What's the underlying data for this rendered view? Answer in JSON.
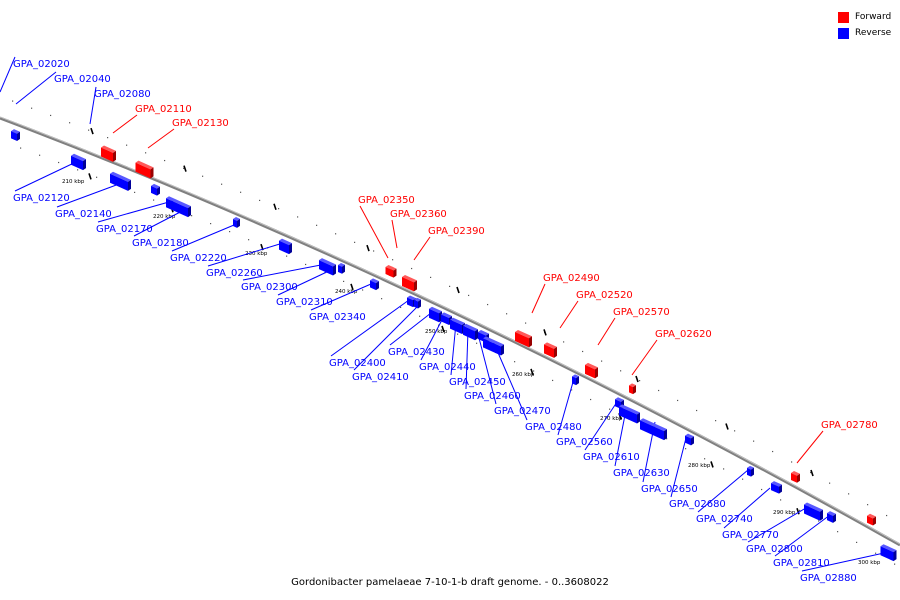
{
  "caption": "Gordonibacter pamelaeae 7-10-1-b draft genome. - 0..3608022",
  "legend": [
    {
      "label": "Forward",
      "color": "#ff0000"
    },
    {
      "label": "Reverse",
      "color": "#0000ff"
    }
  ],
  "colors": {
    "forward": "#ff0000",
    "reverse": "#0000ff",
    "backbone": "#808080"
  },
  "tick_labels": [
    "210 kbp",
    "220 kbp",
    "230 kbp",
    "240 kbp",
    "250 kbp",
    "260 kbp",
    "270 kbp",
    "280 kbp",
    "290 kbp",
    "300 kbp"
  ],
  "genes": [
    {
      "name": "GPA_02020",
      "strand": "reverse"
    },
    {
      "name": "GPA_02040",
      "strand": "reverse"
    },
    {
      "name": "GPA_02080",
      "strand": "reverse"
    },
    {
      "name": "GPA_02110",
      "strand": "forward"
    },
    {
      "name": "GPA_02130",
      "strand": "forward"
    },
    {
      "name": "GPA_02120",
      "strand": "reverse"
    },
    {
      "name": "GPA_02140",
      "strand": "reverse"
    },
    {
      "name": "GPA_02170",
      "strand": "reverse"
    },
    {
      "name": "GPA_02180",
      "strand": "reverse"
    },
    {
      "name": "GPA_02220",
      "strand": "reverse"
    },
    {
      "name": "GPA_02260",
      "strand": "reverse"
    },
    {
      "name": "GPA_02300",
      "strand": "reverse"
    },
    {
      "name": "GPA_02310",
      "strand": "reverse"
    },
    {
      "name": "GPA_02340",
      "strand": "reverse"
    },
    {
      "name": "GPA_02350",
      "strand": "forward"
    },
    {
      "name": "GPA_02360",
      "strand": "forward"
    },
    {
      "name": "GPA_02390",
      "strand": "forward"
    },
    {
      "name": "GPA_02400",
      "strand": "reverse"
    },
    {
      "name": "GPA_02410",
      "strand": "reverse"
    },
    {
      "name": "GPA_02430",
      "strand": "reverse"
    },
    {
      "name": "GPA_02440",
      "strand": "reverse"
    },
    {
      "name": "GPA_02450",
      "strand": "reverse"
    },
    {
      "name": "GPA_02460",
      "strand": "reverse"
    },
    {
      "name": "GPA_02470",
      "strand": "reverse"
    },
    {
      "name": "GPA_02480",
      "strand": "reverse"
    },
    {
      "name": "GPA_02490",
      "strand": "forward"
    },
    {
      "name": "GPA_02520",
      "strand": "forward"
    },
    {
      "name": "GPA_02570",
      "strand": "forward"
    },
    {
      "name": "GPA_02620",
      "strand": "forward"
    },
    {
      "name": "GPA_02560",
      "strand": "reverse"
    },
    {
      "name": "GPA_02610",
      "strand": "reverse"
    },
    {
      "name": "GPA_02630",
      "strand": "reverse"
    },
    {
      "name": "GPA_02650",
      "strand": "reverse"
    },
    {
      "name": "GPA_02680",
      "strand": "reverse"
    },
    {
      "name": "GPA_02740",
      "strand": "reverse"
    },
    {
      "name": "GPA_02770",
      "strand": "reverse"
    },
    {
      "name": "GPA_02780",
      "strand": "forward"
    },
    {
      "name": "GPA_02800",
      "strand": "reverse"
    },
    {
      "name": "GPA_02810",
      "strand": "reverse"
    },
    {
      "name": "GPA_02880",
      "strand": "reverse"
    }
  ]
}
